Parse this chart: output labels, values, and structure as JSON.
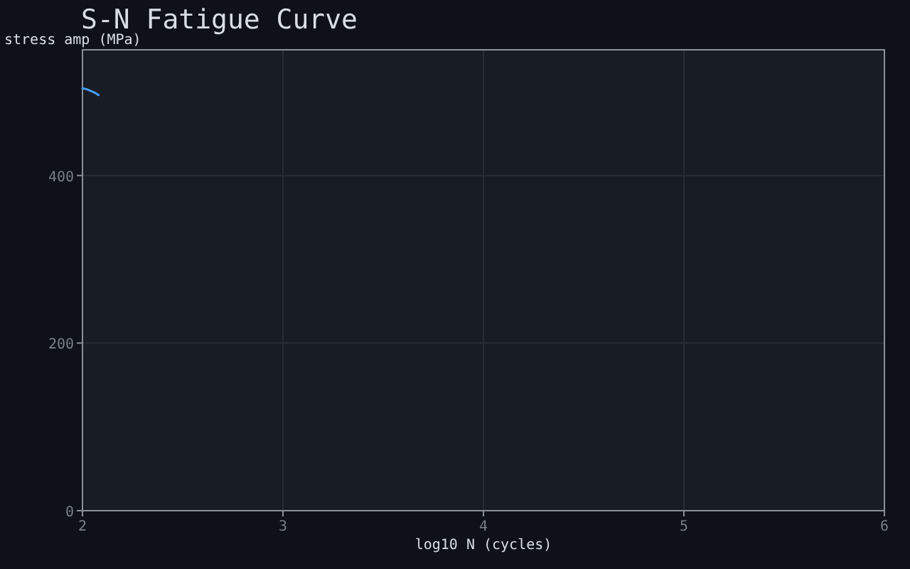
{
  "chart_data": {
    "type": "line",
    "title": "S-N Fatigue Curve",
    "xlabel": "log10 N (cycles)",
    "ylabel": "stress amp (MPa)",
    "x": [
      2.0,
      2.02,
      2.04,
      2.06,
      2.08
    ],
    "series": [
      {
        "color": "#4a9eff",
        "values": [
          504,
          503,
          501,
          499,
          496
        ]
      }
    ],
    "xlim": [
      2,
      6
    ],
    "xticks": [
      2,
      3,
      4,
      5,
      6
    ],
    "ylim": [
      0,
      550
    ],
    "yticks": [
      0,
      200,
      400
    ],
    "grid": true,
    "marker": "none",
    "line_style": "solid"
  }
}
